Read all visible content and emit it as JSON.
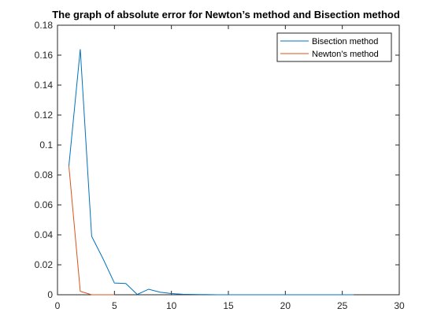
{
  "chart_data": {
    "type": "line",
    "title": "The graph of absolute error for Newton’s method and Bisection method",
    "xlabel": "",
    "ylabel": "",
    "xlim": [
      0,
      30
    ],
    "ylim": [
      0,
      0.18
    ],
    "x_ticks": [
      0,
      5,
      10,
      15,
      20,
      25,
      30
    ],
    "x_tick_labels": [
      "0",
      "5",
      "10",
      "15",
      "20",
      "25",
      "30"
    ],
    "y_ticks": [
      0,
      0.02,
      0.04,
      0.06,
      0.08,
      0.1,
      0.12,
      0.14,
      0.16,
      0.18
    ],
    "y_tick_labels": [
      "0",
      "0.02",
      "0.04",
      "0.06",
      "0.08",
      "0.1",
      "0.12",
      "0.14",
      "0.16",
      "0.18"
    ],
    "grid": false,
    "legend_position": "top-right",
    "series": [
      {
        "name": "Bisection method",
        "color": "#0072BD",
        "x": [
          1,
          2,
          3,
          4,
          5,
          6,
          7,
          8,
          9,
          10,
          11,
          12,
          13,
          14,
          15,
          16,
          17,
          18,
          19,
          20,
          21,
          22,
          23,
          24,
          25,
          26
        ],
        "y": [
          0.086,
          0.164,
          0.039,
          0.024,
          0.0078,
          0.0075,
          0.0002,
          0.0037,
          0.0017,
          0.0008,
          0.0003,
          0.0002,
          0.0001,
          0.0,
          0.0,
          0.0,
          0.0,
          0.0,
          0.0,
          0.0,
          0.0,
          0.0,
          0.0,
          0.0,
          0.0,
          0.0
        ]
      },
      {
        "name": "Newton’s method",
        "color": "#D95319",
        "x": [
          1,
          2,
          3,
          4,
          5
        ],
        "y": [
          0.086,
          0.0023,
          0.0,
          0.0,
          0.0
        ]
      }
    ]
  }
}
